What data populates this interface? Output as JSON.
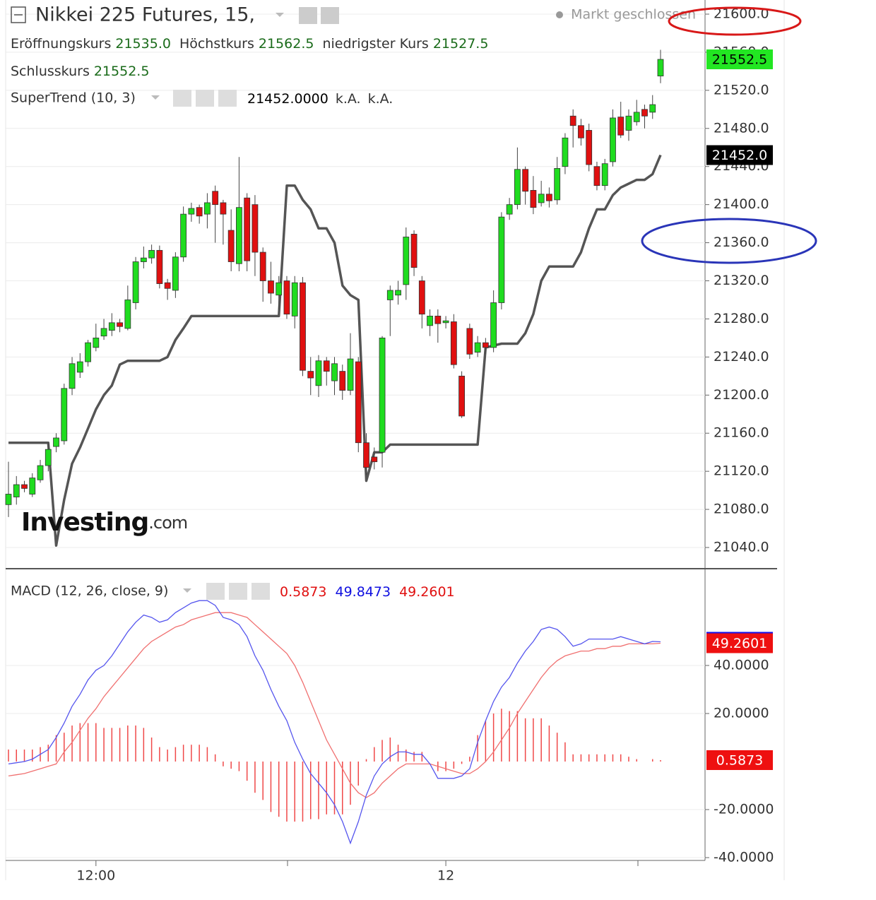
{
  "header": {
    "title": "Nikkei 225 Futures, 15,",
    "status": "Markt geschlossen",
    "ohlc": [
      {
        "label": "Eröffnungskurs",
        "value": "21535.0"
      },
      {
        "label": "Höchstkurs",
        "value": "21562.5"
      },
      {
        "label": "niedrigster Kurs",
        "value": "21527.5"
      },
      {
        "label": "Schlusskurs",
        "value": "21552.5"
      }
    ],
    "logo": {
      "name": "Investing",
      "suffix": ".com"
    }
  },
  "chart_data": [
    {
      "type": "candlestick",
      "up_color": "#1fdc1f",
      "down_color": "#e01010",
      "categories": [
        null,
        null,
        null,
        null,
        null,
        null,
        null,
        null,
        null,
        null,
        null,
        "12:00",
        null,
        null,
        null,
        null,
        null,
        null,
        null,
        null,
        null,
        null,
        null,
        null,
        null,
        null,
        null,
        null,
        null,
        null,
        null,
        null,
        null,
        null,
        null,
        null,
        null,
        null,
        null,
        null,
        null,
        null,
        null,
        null,
        null,
        null,
        null,
        null,
        null,
        null,
        null,
        null,
        null,
        null,
        null,
        "12",
        null,
        null,
        null,
        null,
        null,
        null,
        null,
        null,
        null,
        null,
        null,
        null,
        null,
        null,
        null,
        null,
        null,
        null,
        null,
        null,
        null,
        null,
        null,
        null,
        null,
        null,
        null
      ],
      "open": [
        21085,
        21093,
        21106,
        21096,
        21111,
        21126,
        21146,
        21152,
        21207,
        21224,
        21235,
        21250,
        21262,
        21268,
        21276,
        21270,
        21297,
        21340,
        21344,
        21352,
        21318,
        21310,
        21345,
        21390,
        21397,
        21390,
        21414,
        21402,
        21373,
        21338,
        21407,
        21400,
        21350,
        21320,
        21305,
        21320,
        21283,
        21318,
        21225,
        21210,
        21236,
        21215,
        21225,
        21205,
        21235,
        21150,
        21135,
        21140,
        21300,
        21305,
        21316,
        21369,
        21320,
        21273,
        21283,
        21276,
        21277,
        21220,
        21270,
        21245,
        21255,
        21250,
        21297,
        21390,
        21400,
        21437,
        21415,
        21402,
        21411,
        21405,
        21440,
        21493,
        21483,
        21478,
        21440,
        21420,
        21445,
        21492,
        21478,
        21487,
        21500,
        21497,
        21535
      ],
      "high": [
        21130,
        21115,
        21110,
        21118,
        21132,
        21150,
        21160,
        21212,
        21240,
        21244,
        21258,
        21275,
        21280,
        21286,
        21280,
        21315,
        21345,
        21356,
        21358,
        21357,
        21322,
        21350,
        21398,
        21402,
        21400,
        21412,
        21420,
        21405,
        21395,
        21450,
        21412,
        21410,
        21355,
        21340,
        21325,
        21325,
        21325,
        21324,
        21240,
        21242,
        21240,
        21240,
        21232,
        21265,
        21240,
        21160,
        21145,
        21262,
        21315,
        21320,
        21376,
        21373,
        21325,
        21290,
        21290,
        21283,
        21285,
        21225,
        21275,
        21262,
        21260,
        21310,
        21392,
        21407,
        21460,
        21440,
        21430,
        21425,
        21418,
        21450,
        21475,
        21500,
        21490,
        21485,
        21445,
        21448,
        21500,
        21508,
        21500,
        21510,
        21505,
        21515,
        21562.5
      ],
      "low": [
        21072,
        21085,
        21098,
        21093,
        21108,
        21120,
        21140,
        21148,
        21200,
        21218,
        21230,
        21246,
        21258,
        21262,
        21266,
        21268,
        21290,
        21333,
        21338,
        21312,
        21300,
        21302,
        21340,
        21382,
        21380,
        21375,
        21360,
        21358,
        21330,
        21330,
        21330,
        21325,
        21298,
        21296,
        21290,
        21280,
        21270,
        21220,
        21200,
        21198,
        21210,
        21200,
        21195,
        21200,
        21140,
        21116,
        21122,
        21124,
        21262,
        21295,
        21300,
        21325,
        21270,
        21262,
        21255,
        21270,
        21228,
        21176,
        21238,
        21240,
        21243,
        21245,
        21290,
        21384,
        21395,
        21400,
        21390,
        21398,
        21397,
        21400,
        21432,
        21460,
        21462,
        21435,
        21415,
        21415,
        21440,
        21470,
        21467,
        21483,
        21480,
        21490,
        21527.5
      ],
      "close": [
        21096,
        21106,
        21102,
        21113,
        21126,
        21143,
        21155,
        21207,
        21233,
        21235,
        21255,
        21260,
        21270,
        21276,
        21272,
        21300,
        21340,
        21344,
        21352,
        21317,
        21312,
        21345,
        21390,
        21396,
        21388,
        21402,
        21400,
        21390,
        21340,
        21397,
        21341,
        21350,
        21320,
        21307,
        21318,
        21285,
        21318,
        21226,
        21218,
        21236,
        21225,
        21233,
        21205,
        21238,
        21150,
        21124,
        21130,
        21260,
        21310,
        21310,
        21366,
        21334,
        21285,
        21283,
        21275,
        21278,
        21232,
        21178,
        21243,
        21255,
        21250,
        21297,
        21387,
        21400,
        21437,
        21414,
        21397,
        21411,
        21404,
        21438,
        21470,
        21483,
        21470,
        21442,
        21420,
        21443,
        21491,
        21473,
        21493,
        21497,
        21493,
        21505,
        21552.5
      ],
      "series": [
        {
          "name": "SuperTrend (10, 3)",
          "color": "#555555",
          "values": [
            21150,
            21150,
            21150,
            21150,
            21150,
            21150,
            21042,
            21090,
            21128,
            21145,
            21165,
            21185,
            21200,
            21210,
            21232,
            21236,
            21236,
            21236,
            21236,
            21236,
            21240,
            21258,
            21270,
            21283,
            21283,
            21283,
            21283,
            21283,
            21283,
            21283,
            21283,
            21283,
            21283,
            21283,
            21283,
            21420,
            21420,
            21405,
            21395,
            21375,
            21375,
            21360,
            21315,
            21305,
            21300,
            21110,
            21140,
            21140,
            21148,
            21148,
            21148,
            21148,
            21148,
            21148,
            21148,
            21148,
            21148,
            21148,
            21148,
            21148,
            21250,
            21252,
            21254,
            21254,
            21254,
            21265,
            21285,
            21320,
            21335,
            21335,
            21335,
            21335,
            21350,
            21375,
            21395,
            21395,
            21410,
            21418,
            21422,
            21426,
            21426,
            21432,
            21452
          ]
        }
      ],
      "legend_values": [
        "21452.0000",
        "k.A.",
        "k.A."
      ],
      "ylim": [
        21017.75,
        21614.83
      ],
      "yticks": [
        {
          "value": 21040,
          "label": "21040.0"
        },
        {
          "value": 21080,
          "label": "21080.0"
        },
        {
          "value": 21120,
          "label": "21120.0"
        },
        {
          "value": 21160,
          "label": "21160.0"
        },
        {
          "value": 21200,
          "label": "21200.0"
        },
        {
          "value": 21240,
          "label": "21240.0"
        },
        {
          "value": 21280,
          "label": "21280.0"
        },
        {
          "value": 21320,
          "label": "21320.0"
        },
        {
          "value": 21360,
          "label": "21360.0"
        },
        {
          "value": 21400,
          "label": "21400.0"
        },
        {
          "value": 21440,
          "label": "21440.0"
        },
        {
          "value": 21480,
          "label": "21480.0"
        },
        {
          "value": 21520,
          "label": "21520.0"
        },
        {
          "value": 21560,
          "label": "21560.0"
        },
        {
          "value": 21600,
          "label": "21600.0"
        }
      ],
      "grid": true,
      "markers": [
        {
          "value": 21552.5,
          "label": "21552.5",
          "color": "#22e622",
          "text_color": "#000000"
        },
        {
          "value": 21452,
          "label": "21452.0",
          "color": "#000000",
          "text_color": "#ffffff"
        }
      ]
    },
    {
      "type": "macd",
      "title": "MACD (12, 26, close, 9)",
      "legend_values": [
        "0.5873",
        "49.8473",
        "49.2601"
      ],
      "legend_colors": [
        "#e01010",
        "#1010e0",
        "#e01010"
      ],
      "series": [
        {
          "color": "#5555ee",
          "values": [
            -1,
            -0.5,
            0,
            1,
            3,
            5,
            10,
            16,
            23,
            28,
            34,
            38,
            40,
            44,
            49,
            54,
            58,
            61,
            60,
            58,
            59,
            62,
            64,
            66,
            67,
            67,
            65,
            60,
            59,
            57,
            52,
            44,
            38,
            30,
            23,
            17,
            8,
            1,
            -5,
            -9,
            -13,
            -18,
            -25,
            -34,
            -25,
            -14,
            -6,
            -1,
            2,
            4,
            4,
            3,
            3,
            -1,
            -7,
            -7,
            -7,
            -6,
            -3,
            8,
            17,
            25,
            31,
            35,
            41,
            46,
            50,
            55,
            56,
            55,
            52,
            48,
            49,
            51,
            51,
            51,
            51,
            52,
            51,
            50,
            49,
            50,
            49.8473
          ]
        },
        {
          "color": "#f07070",
          "values": [
            -6,
            -5.5,
            -5,
            -4,
            -3,
            -2,
            -1,
            4,
            8,
            13,
            18,
            22,
            27,
            31,
            35,
            39,
            43,
            47,
            50,
            52,
            54,
            56,
            57,
            59,
            60,
            61,
            62,
            62,
            62,
            61,
            60,
            57,
            54,
            51,
            48,
            45,
            40,
            33,
            25,
            17,
            9,
            3,
            -3,
            -9,
            -13,
            -15,
            -13,
            -9,
            -6,
            -3,
            -1,
            -1,
            -1,
            -1,
            -2,
            -3,
            -4,
            -5,
            -5,
            -3,
            0,
            4,
            9,
            14,
            20,
            25,
            30,
            35,
            39,
            42,
            44,
            45,
            46,
            46,
            47,
            47,
            48,
            48,
            49,
            49,
            49,
            49,
            49.2601
          ]
        }
      ],
      "histogram": {
        "color": "#f04848",
        "values": [
          5,
          5,
          5,
          5,
          6,
          7,
          11,
          12,
          15,
          16,
          16,
          16,
          14,
          14,
          14,
          15,
          15,
          14,
          10,
          6,
          5,
          6,
          7,
          7,
          7,
          6,
          3,
          -2,
          -3,
          -4,
          -8,
          -13,
          -16,
          -21,
          -23,
          -25,
          -25,
          -25,
          -24,
          -24,
          -22,
          -22,
          -22,
          -18,
          -10,
          1,
          6,
          9,
          10,
          7,
          5,
          4,
          4,
          0,
          -4,
          -4,
          -3,
          -1,
          2,
          11,
          17,
          20,
          22,
          21,
          21,
          18,
          18,
          18,
          15,
          12,
          8,
          3,
          3,
          3,
          3,
          3,
          3,
          3,
          2,
          1,
          0,
          1,
          0.5873
        ]
      },
      "ylim": [
        -41.18,
        80.29
      ],
      "yticks": [
        {
          "value": 40,
          "label": "40.0000"
        },
        {
          "value": 20,
          "label": "20.0000"
        },
        {
          "value": -20,
          "label": "-20.0000"
        },
        {
          "value": -40,
          "label": "-40.0000"
        }
      ],
      "markers": [
        {
          "value": 49.8473,
          "label": "49.8473",
          "color": "#1010ee",
          "text_color": "#ffffff"
        },
        {
          "value": 49.2601,
          "label": "49.2601",
          "color": "#ee1010",
          "text_color": "#ffffff"
        },
        {
          "value": 0.5873,
          "label": "0.5873",
          "color": "#ee1010",
          "text_color": "#ffffff"
        }
      ]
    }
  ]
}
